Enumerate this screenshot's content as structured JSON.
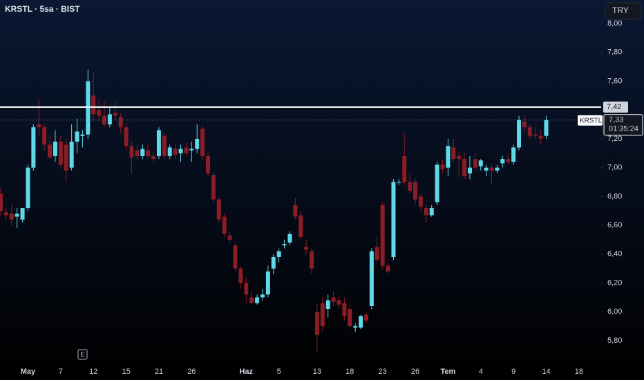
{
  "chart_data": {
    "type": "candlestick",
    "title": "KRSTL · 5sa · BIST",
    "currency": "TRY",
    "categories": [
      null,
      null,
      null,
      null,
      null,
      "May",
      null,
      null,
      null,
      null,
      null,
      "7",
      null,
      null,
      null,
      null,
      null,
      "12",
      null,
      null,
      null,
      null,
      null,
      "15",
      null,
      null,
      null,
      null,
      null,
      "21",
      null,
      null,
      null,
      null,
      null,
      "26",
      null,
      null,
      null,
      null,
      null,
      null,
      null,
      null,
      null,
      "Haz",
      null,
      null,
      null,
      null,
      null,
      "5",
      null,
      null,
      null,
      null,
      null,
      null,
      "13",
      null,
      null,
      null,
      null,
      null,
      "18",
      null,
      null,
      null,
      null,
      null,
      "23",
      null,
      null,
      null,
      null,
      null,
      "26",
      null,
      null,
      null,
      null,
      null,
      "Tem",
      null,
      null,
      null,
      null,
      null,
      "4",
      null,
      null,
      null,
      null,
      null,
      "9",
      null,
      null,
      null,
      null,
      null,
      "14",
      null,
      null,
      null,
      null,
      null,
      "18"
    ],
    "series": [
      {
        "name": "KRSTL",
        "up_color": "#5fd9e8",
        "down_color": "#8c1d26",
        "open": [
          6.82,
          6.69,
          6.68,
          6.66,
          6.64,
          6.72,
          7.0,
          7.3,
          7.28,
          7.16,
          7.08,
          7.18,
          7.16,
          7.0,
          7.18,
          7.22,
          7.23,
          7.5,
          7.4,
          7.36,
          7.3,
          7.38,
          7.35,
          7.28,
          7.15,
          7.12,
          7.08,
          7.12,
          7.08,
          7.08,
          7.22,
          7.08,
          7.13,
          7.1,
          7.14,
          7.12,
          7.13,
          7.27,
          7.08,
          6.95,
          6.78,
          6.66,
          6.53,
          6.46,
          6.3,
          6.2,
          6.1,
          6.06,
          6.1,
          6.12,
          6.3,
          6.38,
          6.46,
          6.48,
          6.74,
          6.67,
          6.45,
          6.42,
          6.0,
          6.06,
          6.02,
          6.1,
          6.08,
          6.06,
          6.02,
          5.89,
          5.89,
          5.98,
          6.04,
          6.45,
          6.74,
          6.32,
          6.38,
          6.9,
          7.08,
          6.9,
          6.9,
          6.8,
          6.72,
          6.67,
          6.76,
          7.02,
          7.0,
          7.14,
          7.08,
          7.06,
          6.96,
          7.06,
          7.01,
          6.98,
          7.0,
          6.98,
          7.03,
          7.06,
          7.04,
          7.14,
          7.32,
          7.28,
          7.23,
          7.22,
          7.22,
          null,
          null,
          null,
          null,
          null,
          null
        ],
        "high": [
          6.86,
          6.72,
          6.74,
          6.72,
          6.72,
          7.02,
          7.3,
          7.48,
          7.3,
          7.22,
          7.26,
          7.22,
          7.2,
          7.3,
          7.34,
          7.26,
          7.68,
          7.66,
          7.48,
          7.46,
          7.42,
          7.46,
          7.38,
          7.3,
          7.18,
          7.16,
          7.16,
          7.16,
          7.1,
          7.28,
          7.24,
          7.16,
          7.16,
          7.16,
          7.18,
          7.18,
          7.3,
          7.29,
          7.1,
          6.97,
          6.8,
          6.68,
          6.56,
          6.48,
          6.32,
          6.24,
          6.14,
          6.12,
          6.16,
          6.32,
          6.4,
          6.44,
          6.5,
          6.56,
          6.79,
          6.7,
          6.5,
          6.44,
          6.06,
          6.1,
          6.12,
          6.14,
          6.12,
          6.1,
          6.06,
          5.92,
          5.98,
          6.0,
          6.44,
          6.52,
          6.76,
          6.34,
          6.92,
          6.92,
          7.24,
          6.96,
          6.92,
          6.82,
          6.74,
          6.74,
          7.04,
          7.06,
          7.2,
          7.2,
          7.12,
          7.1,
          7.08,
          7.1,
          7.06,
          7.02,
          7.02,
          7.02,
          7.08,
          7.1,
          7.16,
          7.36,
          7.36,
          7.3,
          7.28,
          7.26,
          7.36,
          null,
          null,
          null,
          null,
          null,
          null
        ],
        "low": [
          6.66,
          6.64,
          6.6,
          6.58,
          6.62,
          6.7,
          6.98,
          7.22,
          7.12,
          7.06,
          7.04,
          7.0,
          6.9,
          6.98,
          7.1,
          7.14,
          7.2,
          7.32,
          7.32,
          7.28,
          7.28,
          7.33,
          7.24,
          7.12,
          6.96,
          7.06,
          7.06,
          7.06,
          7.04,
          7.06,
          7.06,
          7.06,
          7.06,
          7.04,
          7.08,
          7.04,
          7.1,
          7.05,
          6.94,
          6.76,
          6.62,
          6.52,
          6.48,
          6.28,
          6.16,
          6.06,
          6.06,
          6.05,
          6.08,
          6.1,
          6.26,
          6.34,
          6.44,
          6.46,
          6.64,
          6.5,
          6.4,
          6.26,
          5.72,
          5.86,
          5.96,
          6.04,
          6.02,
          5.94,
          5.88,
          5.86,
          5.88,
          5.92,
          6.02,
          6.34,
          6.3,
          6.26,
          6.36,
          6.88,
          6.88,
          6.82,
          6.74,
          6.7,
          6.62,
          6.66,
          6.74,
          6.96,
          6.94,
          7.04,
          6.94,
          6.92,
          6.92,
          6.98,
          6.98,
          6.94,
          6.88,
          6.96,
          7.0,
          7.02,
          7.02,
          7.12,
          7.24,
          7.2,
          7.2,
          7.16,
          7.2,
          null,
          null,
          null,
          null,
          null,
          null
        ],
        "close": [
          6.7,
          6.67,
          6.64,
          6.68,
          6.72,
          7.0,
          7.28,
          7.28,
          7.16,
          7.07,
          7.18,
          7.02,
          6.98,
          7.18,
          7.25,
          7.23,
          7.6,
          7.37,
          7.36,
          7.3,
          7.37,
          7.36,
          7.28,
          7.15,
          7.07,
          7.08,
          7.13,
          7.08,
          7.06,
          7.26,
          7.08,
          7.14,
          7.09,
          7.13,
          7.1,
          7.13,
          7.2,
          7.08,
          6.96,
          6.78,
          6.64,
          6.54,
          6.5,
          6.3,
          6.2,
          6.12,
          6.06,
          6.1,
          6.12,
          6.28,
          6.38,
          6.42,
          6.47,
          6.54,
          6.66,
          6.52,
          6.43,
          6.3,
          5.84,
          5.9,
          6.08,
          6.07,
          6.05,
          5.97,
          5.9,
          5.9,
          5.97,
          5.94,
          6.42,
          6.36,
          6.32,
          6.28,
          6.9,
          6.9,
          6.9,
          6.84,
          6.78,
          6.73,
          6.67,
          6.72,
          7.02,
          6.99,
          7.15,
          7.06,
          7.06,
          6.94,
          7.0,
          7.0,
          7.05,
          7.0,
          6.98,
          7.0,
          7.06,
          7.04,
          7.14,
          7.33,
          7.28,
          7.22,
          7.22,
          7.2,
          7.33,
          null,
          null,
          null,
          null,
          null,
          null
        ]
      }
    ],
    "ylim": [
      5.637,
      8.163
    ],
    "yticks": [
      {
        "value": 5.8,
        "label": "5,80"
      },
      {
        "value": 6.0,
        "label": "6,00"
      },
      {
        "value": 6.2,
        "label": "6,20"
      },
      {
        "value": 6.4,
        "label": "6,40"
      },
      {
        "value": 6.6,
        "label": "6,60"
      },
      {
        "value": 6.8,
        "label": "6,80"
      },
      {
        "value": 7.0,
        "label": "7,00"
      },
      {
        "value": 7.2,
        "label": "7,20"
      },
      {
        "value": 7.4,
        "label": "7,40"
      },
      {
        "value": 7.6,
        "label": "7,60"
      },
      {
        "value": 7.8,
        "label": "7,80"
      },
      {
        "value": 8.0,
        "label": "8,00"
      }
    ],
    "price_line": {
      "value": 7.42,
      "label": "7,42",
      "color": "#ffffff"
    },
    "last_price": {
      "value": 7.33,
      "label": "7,33",
      "countdown": "01:35:24"
    },
    "event_marker": "E"
  }
}
